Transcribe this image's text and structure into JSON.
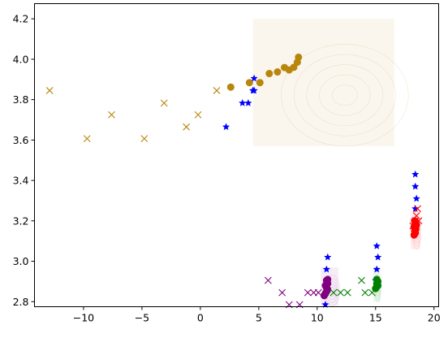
{
  "chart_data": {
    "type": "scatter",
    "title": "",
    "xlabel": "",
    "ylabel": "",
    "xlim": [
      -14.2,
      20.4
    ],
    "ylim": [
      2.775,
      4.275
    ],
    "xticks": [
      -10,
      -5,
      0,
      5,
      10,
      15,
      20
    ],
    "yticks": [
      2.8,
      3.0,
      3.2,
      3.4,
      3.6,
      3.8,
      4.0,
      4.2
    ],
    "grid": false,
    "legend": "none",
    "series": [
      {
        "color": "#b8860b",
        "marker": "x",
        "points": [
          [
            -12.9,
            3.845
          ],
          [
            -9.7,
            3.607
          ],
          [
            -7.6,
            3.725
          ],
          [
            -4.8,
            3.607
          ],
          [
            -3.1,
            3.783
          ],
          [
            -1.2,
            3.665
          ],
          [
            -0.2,
            3.725
          ],
          [
            1.4,
            3.845
          ]
        ]
      },
      {
        "color": "#b8860b",
        "marker": "o",
        "points": [
          [
            2.6,
            3.862
          ],
          [
            4.2,
            3.884
          ],
          [
            5.1,
            3.884
          ],
          [
            5.9,
            3.929
          ],
          [
            6.6,
            3.937
          ],
          [
            7.2,
            3.959
          ],
          [
            7.6,
            3.947
          ],
          [
            8.0,
            3.96
          ],
          [
            8.3,
            3.985
          ],
          [
            8.4,
            4.01
          ]
        ]
      },
      {
        "color": "#0000ff",
        "marker": "star",
        "points": [
          [
            2.2,
            3.665
          ],
          [
            3.6,
            3.783
          ],
          [
            4.1,
            3.783
          ],
          [
            4.5,
            3.845
          ],
          [
            4.6,
            3.845
          ],
          [
            4.6,
            3.905
          ],
          [
            10.7,
            2.785
          ],
          [
            10.8,
            2.845
          ],
          [
            10.8,
            2.905
          ],
          [
            10.8,
            2.96
          ],
          [
            10.9,
            3.02
          ],
          [
            15.0,
            2.905
          ],
          [
            15.1,
            2.96
          ],
          [
            15.2,
            3.02
          ],
          [
            15.1,
            3.075
          ],
          [
            18.3,
            3.2
          ],
          [
            18.4,
            3.26
          ],
          [
            18.5,
            3.31
          ],
          [
            18.4,
            3.37
          ],
          [
            18.4,
            3.43
          ]
        ]
      },
      {
        "color": "#800080",
        "marker": "x",
        "points": [
          [
            5.8,
            2.905
          ],
          [
            7.0,
            2.845
          ],
          [
            7.6,
            2.785
          ],
          [
            8.5,
            2.785
          ],
          [
            9.2,
            2.845
          ],
          [
            9.7,
            2.845
          ],
          [
            10.1,
            2.845
          ]
        ]
      },
      {
        "color": "#800080",
        "marker": "o",
        "points": [
          [
            10.6,
            2.83
          ],
          [
            10.7,
            2.84
          ],
          [
            10.8,
            2.85
          ],
          [
            10.9,
            2.86
          ],
          [
            10.8,
            2.87
          ],
          [
            10.7,
            2.88
          ],
          [
            10.9,
            2.89
          ],
          [
            10.8,
            2.905
          ],
          [
            10.9,
            2.91
          ]
        ]
      },
      {
        "color": "#008000",
        "marker": "x",
        "points": [
          [
            11.4,
            2.845
          ],
          [
            12.0,
            2.845
          ],
          [
            12.6,
            2.845
          ],
          [
            13.8,
            2.905
          ],
          [
            14.1,
            2.845
          ],
          [
            14.7,
            2.845
          ]
        ]
      },
      {
        "color": "#008000",
        "marker": "o",
        "points": [
          [
            15.0,
            2.865
          ],
          [
            15.1,
            2.875
          ],
          [
            15.2,
            2.88
          ],
          [
            15.1,
            2.89
          ],
          [
            15.2,
            2.9
          ],
          [
            15.1,
            2.91
          ]
        ]
      },
      {
        "color": "#ff0000",
        "marker": "x",
        "points": [
          [
            18.2,
            3.175
          ],
          [
            18.4,
            3.2
          ],
          [
            18.5,
            3.225
          ],
          [
            18.6,
            3.26
          ],
          [
            18.7,
            3.2
          ],
          [
            18.3,
            3.15
          ]
        ]
      },
      {
        "color": "#ff0000",
        "marker": "o",
        "points": [
          [
            18.3,
            3.13
          ],
          [
            18.4,
            3.14
          ],
          [
            18.35,
            3.15
          ],
          [
            18.45,
            3.16
          ],
          [
            18.3,
            3.17
          ],
          [
            18.5,
            3.18
          ],
          [
            18.4,
            3.19
          ],
          [
            18.35,
            3.2
          ]
        ]
      }
    ],
    "density_regions": [
      {
        "color": "#b8860b",
        "x": [
          4.5,
          16.6
        ],
        "y": [
          3.57,
          4.2
        ]
      },
      {
        "color": "#800080",
        "x": [
          10.3,
          11.8
        ],
        "y": [
          2.78,
          2.97
        ]
      },
      {
        "color": "#008000",
        "x": [
          14.8,
          15.4
        ],
        "y": [
          2.8,
          2.97
        ]
      },
      {
        "color": "#ff0000",
        "x": [
          18.0,
          18.8
        ],
        "y": [
          3.06,
          3.25
        ]
      }
    ]
  }
}
